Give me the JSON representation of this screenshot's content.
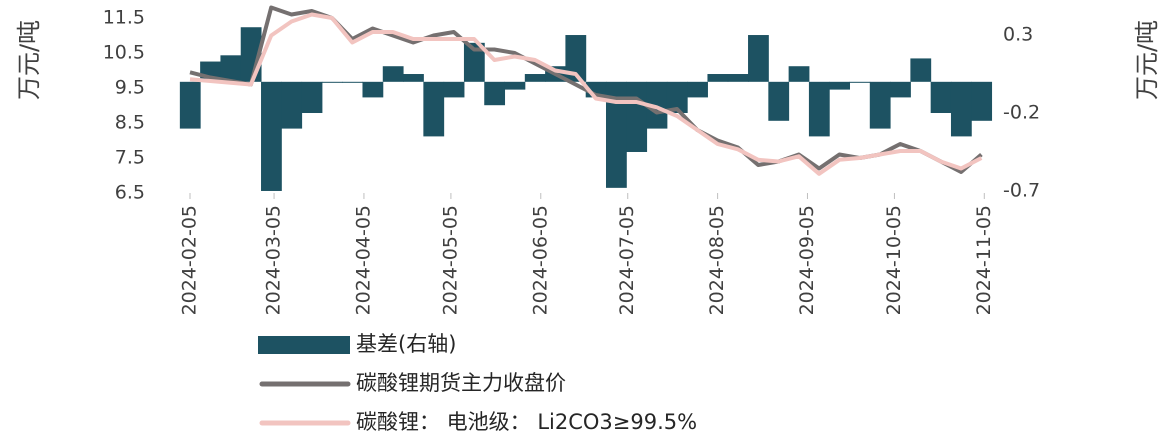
{
  "chart_data": {
    "type": "combo",
    "y_label": "万元/吨",
    "y2_label": "万元/吨",
    "x": [
      "2024-02-05",
      "2024-02-12",
      "2024-02-19",
      "2024-02-26",
      "2024-03-04",
      "2024-03-11",
      "2024-03-18",
      "2024-03-25",
      "2024-04-01",
      "2024-04-08",
      "2024-04-15",
      "2024-04-22",
      "2024-04-29",
      "2024-05-06",
      "2024-05-13",
      "2024-05-20",
      "2024-05-27",
      "2024-06-03",
      "2024-06-10",
      "2024-06-17",
      "2024-06-24",
      "2024-07-01",
      "2024-07-08",
      "2024-07-15",
      "2024-07-22",
      "2024-07-29",
      "2024-08-05",
      "2024-08-12",
      "2024-08-19",
      "2024-08-26",
      "2024-09-02",
      "2024-09-09",
      "2024-09-16",
      "2024-09-23",
      "2024-09-30",
      "2024-10-07",
      "2024-10-14",
      "2024-10-21",
      "2024-10-28",
      "2024-11-04"
    ],
    "series": [
      {
        "name": "基差(右轴)",
        "type": "bar",
        "axis": "y2",
        "color": "#1d5262",
        "values": [
          -0.3,
          0.13,
          0.17,
          0.35,
          -0.7,
          -0.3,
          -0.2,
          0.0,
          0.0,
          -0.1,
          0.1,
          0.05,
          -0.35,
          -0.1,
          0.25,
          -0.15,
          -0.05,
          0.05,
          0.1,
          0.3,
          -0.1,
          -0.68,
          -0.45,
          -0.3,
          -0.2,
          -0.1,
          0.05,
          0.05,
          0.3,
          -0.25,
          0.1,
          -0.35,
          -0.05,
          0.0,
          -0.3,
          -0.1,
          0.15,
          -0.2,
          -0.35,
          -0.25
        ]
      },
      {
        "name": "碳酸锂期货主力收盘价",
        "type": "line",
        "color": "#757070",
        "values": [
          9.95,
          9.8,
          9.7,
          9.6,
          11.8,
          11.6,
          11.7,
          11.5,
          10.9,
          11.2,
          11.0,
          10.8,
          11.0,
          11.1,
          10.6,
          10.6,
          10.5,
          10.2,
          9.9,
          9.6,
          9.3,
          9.2,
          9.2,
          8.8,
          8.9,
          8.3,
          8.0,
          7.8,
          7.3,
          7.4,
          7.6,
          7.2,
          7.6,
          7.5,
          7.6,
          7.9,
          7.7,
          7.4,
          7.1,
          7.6
        ]
      },
      {
        "name": "碳酸锂：  电池级：  Li2CO3≥99.5%",
        "type": "line",
        "color": "#f2c4c0",
        "values": [
          9.75,
          9.7,
          9.65,
          9.6,
          11.0,
          11.4,
          11.6,
          11.5,
          10.8,
          11.1,
          11.1,
          10.9,
          10.9,
          10.9,
          10.9,
          10.3,
          10.4,
          10.3,
          10.0,
          9.9,
          9.2,
          9.1,
          9.1,
          8.95,
          8.7,
          8.3,
          7.9,
          7.75,
          7.45,
          7.4,
          7.55,
          7.05,
          7.45,
          7.5,
          7.6,
          7.7,
          7.7,
          7.4,
          7.2,
          7.5
        ]
      }
    ],
    "xlim": [
      "2024-02-05",
      "2024-11-08"
    ],
    "xticks": [
      "2024-02-05",
      "2024-03-05",
      "2024-04-05",
      "2024-05-05",
      "2024-06-05",
      "2024-07-05",
      "2024-08-05",
      "2024-09-05",
      "2024-10-05",
      "2024-11-05"
    ],
    "ylim": [
      6.5,
      11.9
    ],
    "yticks": [
      6.5,
      7.5,
      8.5,
      9.5,
      10.5,
      11.5
    ],
    "y2lim": [
      -0.713,
      0.499
    ],
    "y2ticks": [
      -0.7,
      -0.2,
      0.3
    ]
  }
}
